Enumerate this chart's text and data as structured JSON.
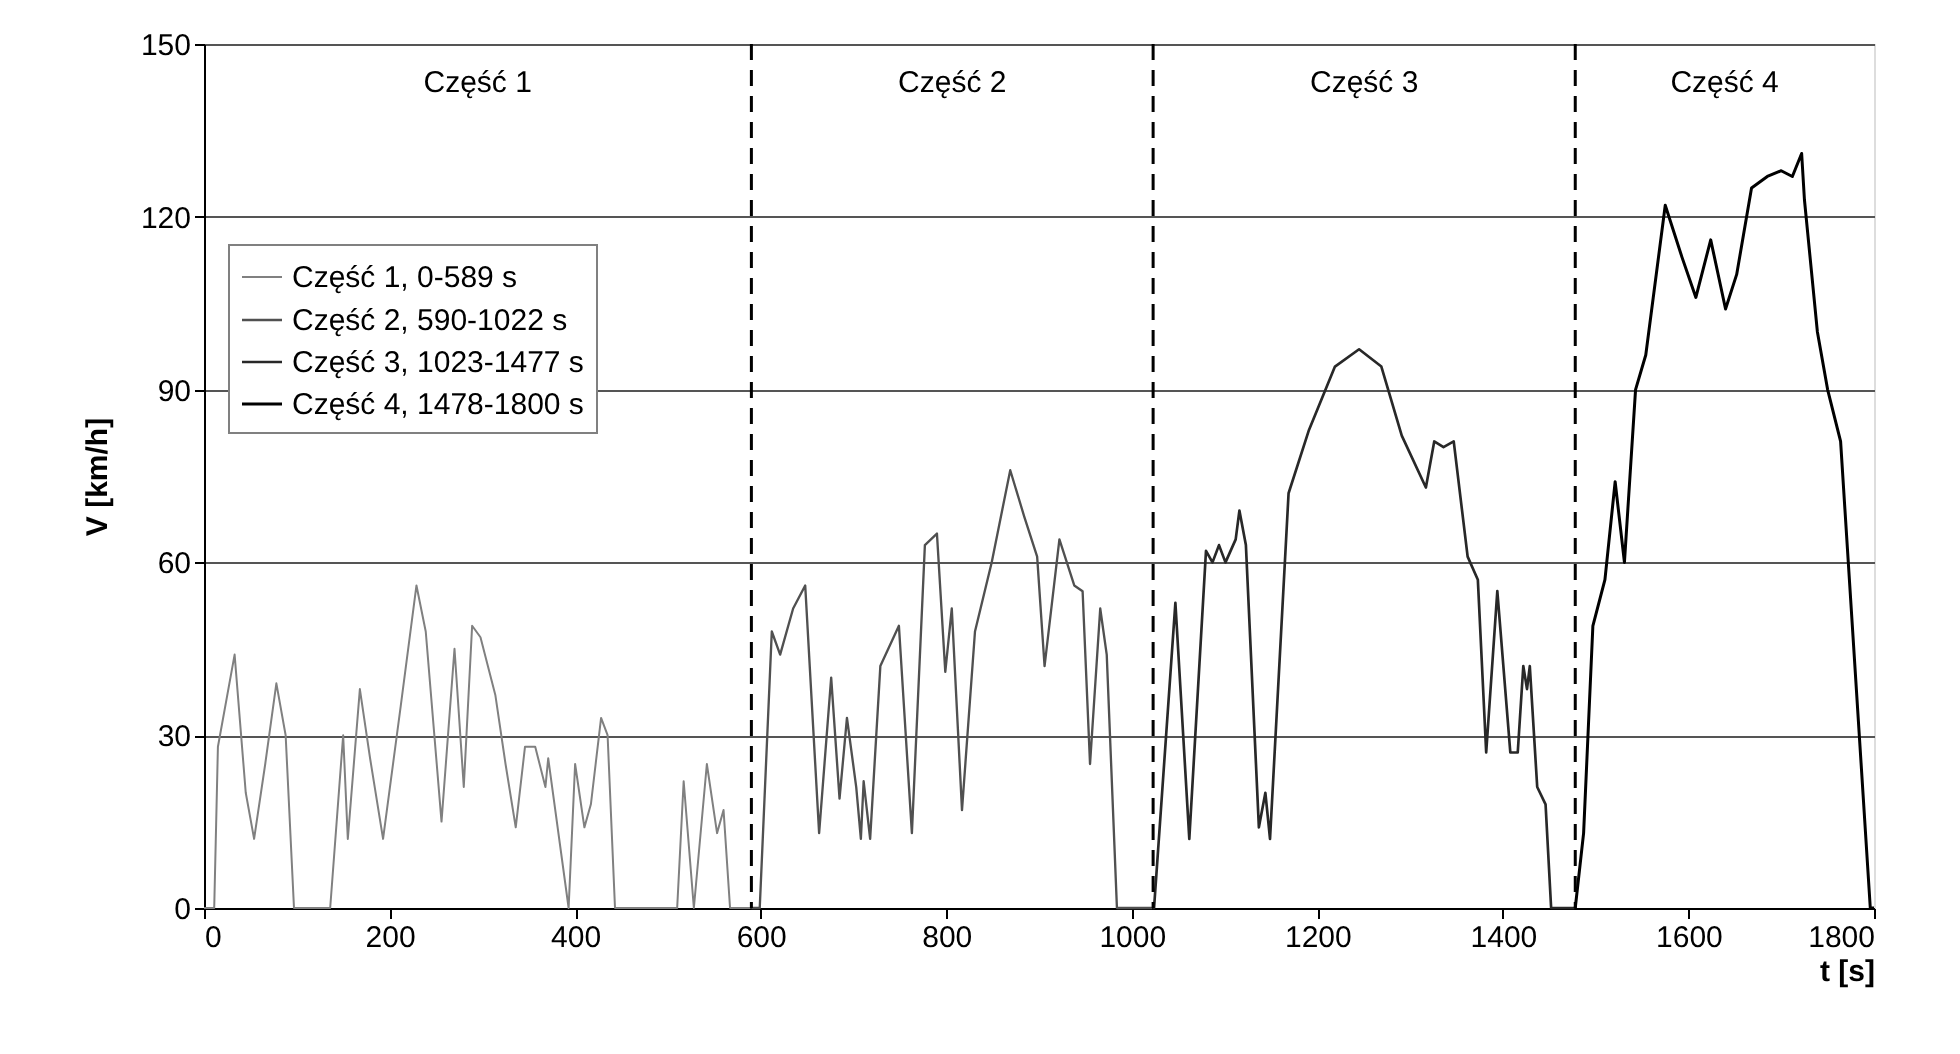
{
  "chart_data": {
    "type": "line",
    "xlabel": "t [s]",
    "ylabel": "V [km/h]",
    "xlim": [
      0,
      1800
    ],
    "xticks": [
      0,
      200,
      400,
      600,
      800,
      1000,
      1200,
      1400,
      1600,
      1800
    ],
    "ylim": [
      0,
      150
    ],
    "yticks": [
      0,
      30,
      60,
      90,
      120,
      150
    ],
    "grid": "y",
    "legend": "top left",
    "line_style": "solid",
    "marker": "none",
    "series": [
      {
        "name": "Część 1, 0-589 s",
        "color": "#808080",
        "x": [
          0,
          11,
          15,
          33,
          45,
          54,
          66,
          78,
          88,
          97,
          136,
          150,
          155,
          168,
          179,
          193,
          212,
          229,
          239,
          256,
          270,
          280,
          289,
          298,
          314,
          325,
          336,
          346,
          357,
          368,
          371,
          393,
          400,
          410,
          417,
          428,
          435,
          443,
          510,
          517,
          528,
          542,
          553,
          560,
          567,
          589
        ],
        "values": [
          0,
          0,
          28,
          44,
          20,
          12,
          25,
          39,
          30,
          0,
          0,
          30,
          12,
          38,
          26,
          12,
          35,
          56,
          48,
          15,
          45,
          21,
          49,
          47,
          37,
          25,
          14,
          28,
          28,
          21,
          26,
          0,
          25,
          14,
          18,
          33,
          30,
          0,
          0,
          22,
          0,
          25,
          13,
          17,
          0,
          0
        ]
      },
      {
        "name": "Część 2, 590-1022 s",
        "color": "#505050",
        "x": [
          590,
          599,
          612,
          621,
          635,
          648,
          663,
          676,
          685,
          693,
          703,
          708,
          711,
          718,
          729,
          749,
          763,
          777,
          790,
          799,
          806,
          817,
          831,
          849,
          869,
          884,
          898,
          906,
          922,
          938,
          947,
          955,
          966,
          973,
          984,
          1022
        ],
        "values": [
          0,
          0,
          48,
          44,
          52,
          56,
          13,
          40,
          19,
          33,
          21,
          12,
          22,
          12,
          42,
          49,
          13,
          63,
          65,
          41,
          52,
          17,
          48,
          60,
          76,
          68,
          61,
          42,
          64,
          56,
          55,
          25,
          52,
          44,
          0,
          0
        ]
      },
      {
        "name": "Część 3, 1023-1477 s",
        "color": "#282828",
        "x": [
          1023,
          1024,
          1047,
          1062,
          1080,
          1087,
          1094,
          1101,
          1112,
          1116,
          1123,
          1137,
          1144,
          1149,
          1169,
          1191,
          1219,
          1245,
          1269,
          1291,
          1317,
          1326,
          1336,
          1347,
          1362,
          1373,
          1382,
          1394,
          1408,
          1416,
          1422,
          1426,
          1429,
          1437,
          1446,
          1452,
          1477
        ],
        "values": [
          0,
          0,
          53,
          12,
          62,
          60,
          63,
          60,
          64,
          69,
          63,
          14,
          20,
          12,
          72,
          83,
          94,
          97,
          94,
          82,
          73,
          81,
          80,
          81,
          61,
          57,
          27,
          55,
          27,
          27,
          42,
          38,
          42,
          21,
          18,
          0,
          0
        ]
      },
      {
        "name": "Część 4, 1478-1800 s",
        "color": "#000000",
        "x": [
          1478,
          1487,
          1497,
          1510,
          1521,
          1531,
          1543,
          1554,
          1575,
          1593,
          1608,
          1624,
          1640,
          1652,
          1668,
          1685,
          1700,
          1712,
          1722,
          1725,
          1739,
          1750,
          1764,
          1796,
          1800
        ],
        "values": [
          0,
          13,
          49,
          57,
          74,
          60,
          90,
          96,
          122,
          113,
          106,
          116,
          104,
          110,
          125,
          127,
          128,
          127,
          131,
          123,
          100,
          90,
          81,
          0,
          0
        ]
      }
    ],
    "ref_lines": [
      {
        "axis": "x",
        "value": 590,
        "color": "#000000",
        "line_style": "dashed"
      },
      {
        "axis": "x",
        "value": 1023,
        "color": "#000000",
        "line_style": "dashed"
      },
      {
        "axis": "x",
        "value": 1478,
        "color": "#000000",
        "line_style": "dashed"
      }
    ],
    "annotations": [
      "Część 1",
      "Część 2",
      "Część 3",
      "Część 4"
    ]
  }
}
